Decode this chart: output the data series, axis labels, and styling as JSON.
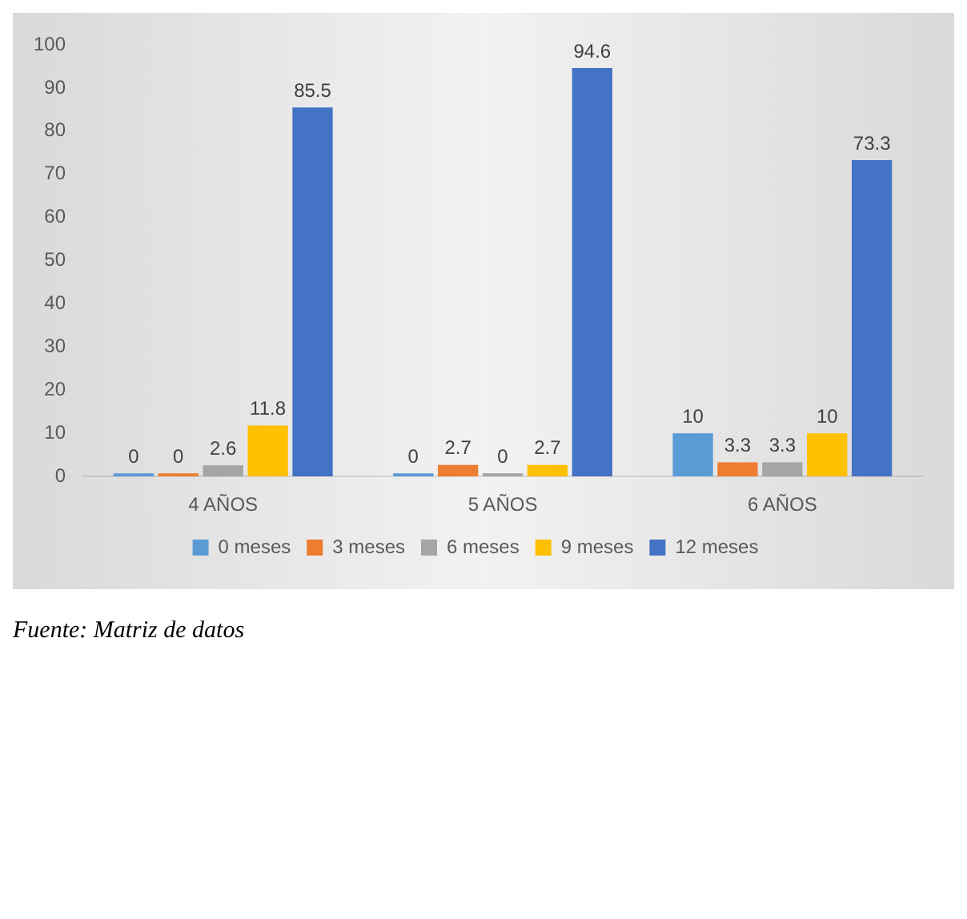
{
  "chart_data": {
    "type": "bar",
    "categories": [
      "4 AÑOS",
      "5 AÑOS",
      "6 AÑOS"
    ],
    "series": [
      {
        "name": "0 meses",
        "color": "#5b9bd5",
        "values": [
          0,
          0,
          10
        ]
      },
      {
        "name": "3 meses",
        "color": "#ed7d31",
        "values": [
          0,
          2.7,
          3.3
        ]
      },
      {
        "name": "6 meses",
        "color": "#a5a5a5",
        "values": [
          2.6,
          0,
          3.3
        ]
      },
      {
        "name": "9 meses",
        "color": "#ffc000",
        "values": [
          11.8,
          2.7,
          10
        ]
      },
      {
        "name": "12 meses",
        "color": "#4472c4",
        "values": [
          85.5,
          94.6,
          73.3
        ]
      }
    ],
    "ylim": [
      0,
      100
    ],
    "yticks": [
      0,
      10,
      20,
      30,
      40,
      50,
      60,
      70,
      80,
      90,
      100
    ],
    "grid": false,
    "legend": "bottom",
    "data_labels": true,
    "annotations": [
      "Fuente: Matriz de datos"
    ]
  }
}
